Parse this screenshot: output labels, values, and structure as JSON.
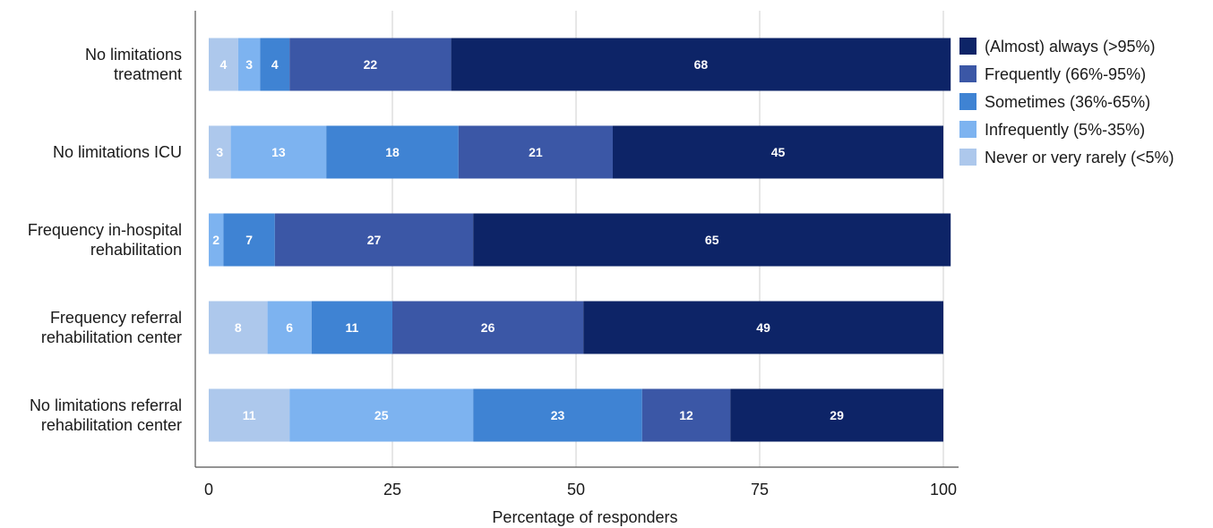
{
  "chart_data": {
    "type": "bar",
    "orientation": "horizontal",
    "stacked": true,
    "title": "",
    "xlabel": "Percentage of responders",
    "ylabel": "",
    "xlim": [
      0,
      100
    ],
    "xticks": [
      "0",
      "25",
      "50",
      "75",
      "100"
    ],
    "xtick_values": [
      0,
      25,
      50,
      75,
      100
    ],
    "grid": "vertical",
    "legend_position": "right",
    "categories": [
      [
        "No limitations",
        "treatment"
      ],
      [
        "No limitations ICU"
      ],
      [
        "Frequency in-hospital",
        "rehabilitation"
      ],
      [
        "Frequency referral",
        "rehabilitation center"
      ],
      [
        "No limitations referral",
        "rehabilitation center"
      ]
    ],
    "series": [
      {
        "name": "Never or very rarely (<5%)",
        "color": "#adc8ec",
        "values": [
          4,
          3,
          0,
          8,
          11
        ],
        "labels": [
          "4",
          "3",
          "",
          "8",
          "11"
        ]
      },
      {
        "name": "Infrequently (5%-35%)",
        "color": "#7db3f0",
        "values": [
          3,
          13,
          2,
          6,
          25
        ],
        "labels": [
          "3",
          "13",
          "2",
          "6",
          "25"
        ]
      },
      {
        "name": "Sometimes (36%-65%)",
        "color": "#3f83d3",
        "values": [
          4,
          18,
          7,
          11,
          23
        ],
        "labels": [
          "4",
          "18",
          "7",
          "11",
          "23"
        ]
      },
      {
        "name": "Frequently (66%-95%)",
        "color": "#3b57a6",
        "values": [
          22,
          21,
          27,
          26,
          12
        ],
        "labels": [
          "22",
          "21",
          "27",
          "26",
          "12"
        ]
      },
      {
        "name": "(Almost) always (>95%)",
        "color": "#0d2467",
        "values": [
          68,
          45,
          65,
          49,
          29
        ],
        "labels": [
          "68",
          "45",
          "65",
          "49",
          "29"
        ]
      }
    ],
    "legend_order": [
      4,
      3,
      2,
      1,
      0
    ]
  }
}
